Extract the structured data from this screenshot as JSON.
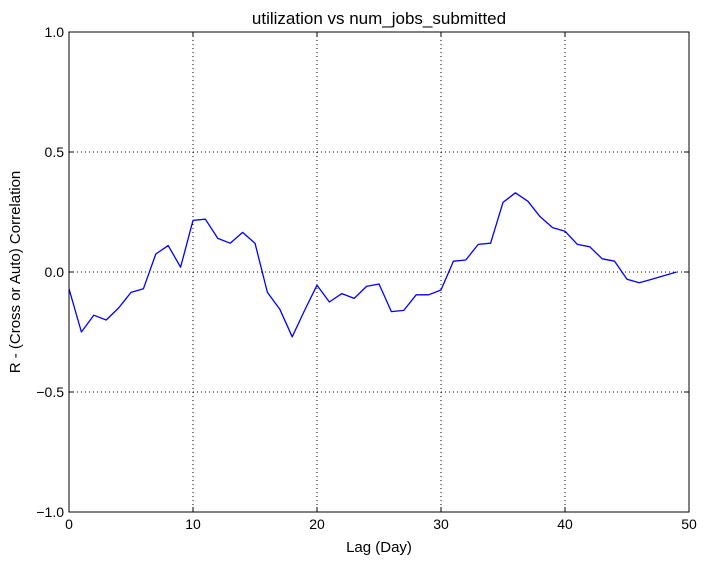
{
  "chart_data": {
    "type": "line",
    "title": "utilization vs num_jobs_submitted",
    "xlabel": "Lag (Day)",
    "ylabel": "R - (Cross or Auto) Correlation",
    "xlim": [
      0,
      50
    ],
    "ylim": [
      -1.0,
      1.0
    ],
    "xticks": [
      0,
      10,
      20,
      30,
      40,
      50
    ],
    "xtick_labels": [
      "0",
      "10",
      "20",
      "30",
      "40",
      "50"
    ],
    "yticks": [
      -1.0,
      -0.5,
      0.0,
      0.5,
      1.0
    ],
    "ytick_labels": [
      "−1.0",
      "−0.5",
      "0.0",
      "0.5",
      "1.0"
    ],
    "grid": true,
    "series": [
      {
        "color": "#0000ff",
        "x": [
          0,
          1,
          2,
          3,
          4,
          5,
          6,
          7,
          8,
          9,
          10,
          11,
          12,
          13,
          14,
          15,
          16,
          17,
          18,
          19,
          20,
          21,
          22,
          23,
          24,
          25,
          26,
          27,
          28,
          29,
          30,
          31,
          32,
          33,
          34,
          35,
          36,
          37,
          38,
          39,
          40,
          41,
          42,
          43,
          44,
          45,
          46,
          47,
          48,
          49
        ],
        "y": [
          -0.07,
          -0.25,
          -0.18,
          -0.2,
          -0.15,
          -0.085,
          -0.07,
          0.075,
          0.11,
          0.02,
          0.215,
          0.22,
          0.14,
          0.12,
          0.165,
          0.12,
          -0.085,
          -0.155,
          -0.27,
          -0.16,
          -0.055,
          -0.125,
          -0.09,
          -0.11,
          -0.06,
          -0.05,
          -0.165,
          -0.16,
          -0.095,
          -0.095,
          -0.075,
          0.045,
          0.05,
          0.115,
          0.12,
          0.29,
          0.33,
          0.295,
          0.23,
          0.185,
          0.17,
          0.115,
          0.105,
          0.055,
          0.045,
          -0.03,
          -0.045,
          -0.03,
          -0.015,
          0.0
        ]
      }
    ]
  }
}
